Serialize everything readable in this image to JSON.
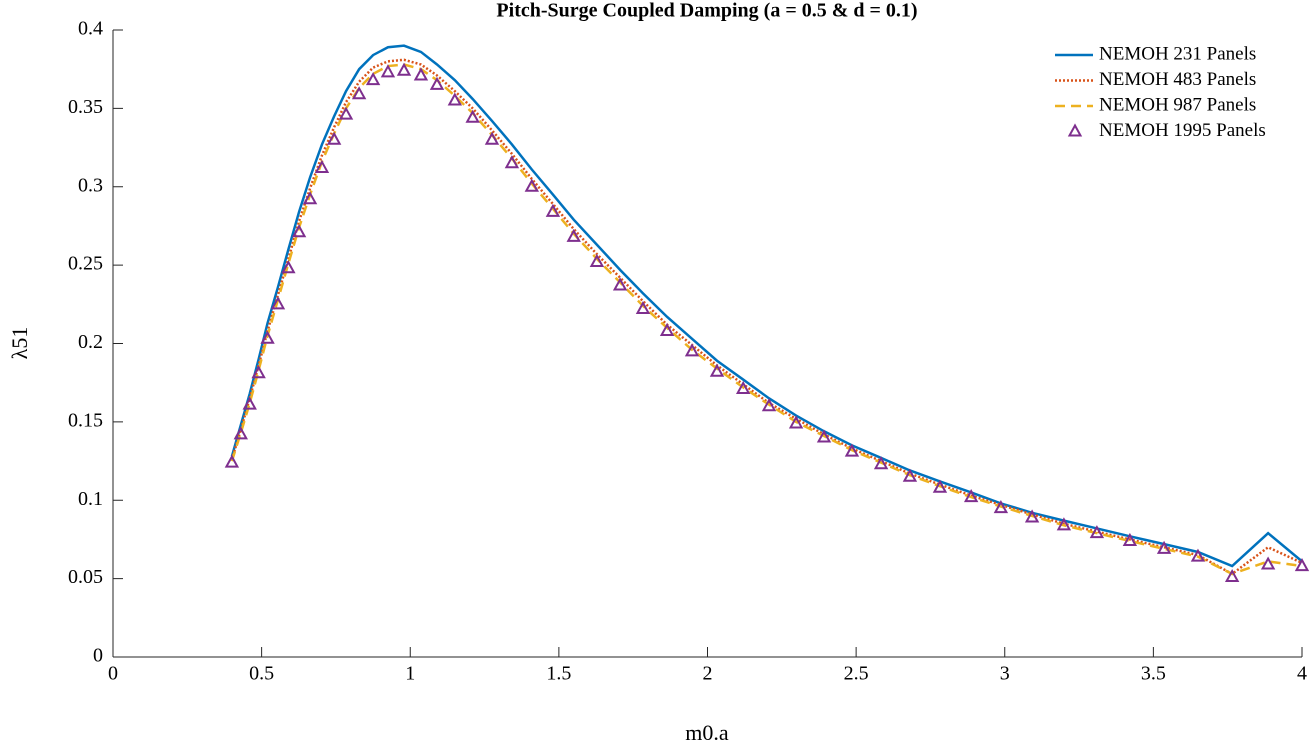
{
  "chart_data": {
    "type": "line",
    "title": "Pitch-Surge Coupled Damping (a = 0.5 & d = 0.1)",
    "xlabel": "m0.a",
    "ylabel": "λ51",
    "x": [
      0.4,
      0.43,
      0.46,
      0.49,
      0.52,
      0.555,
      0.59,
      0.626,
      0.663,
      0.703,
      0.744,
      0.784,
      0.828,
      0.875,
      0.925,
      0.979,
      1.036,
      1.09,
      1.15,
      1.21,
      1.275,
      1.342,
      1.409,
      1.48,
      1.55,
      1.628,
      1.706,
      1.783,
      1.864,
      1.948,
      2.032,
      2.12,
      2.207,
      2.298,
      2.392,
      2.486,
      2.584,
      2.681,
      2.782,
      2.887,
      2.987,
      3.092,
      3.199,
      3.31,
      3.421,
      3.536,
      3.65,
      3.765,
      3.886,
      4.0
    ],
    "series": [
      {
        "name": "NEMOH 231 Panels",
        "color": "#0072bd",
        "style": "solid",
        "values": [
          0.128,
          0.148,
          0.168,
          0.19,
          0.213,
          0.236,
          0.26,
          0.284,
          0.306,
          0.327,
          0.345,
          0.361,
          0.375,
          0.384,
          0.389,
          0.39,
          0.386,
          0.378,
          0.368,
          0.356,
          0.342,
          0.327,
          0.311,
          0.295,
          0.279,
          0.263,
          0.247,
          0.232,
          0.217,
          0.203,
          0.189,
          0.177,
          0.165,
          0.154,
          0.144,
          0.135,
          0.127,
          0.119,
          0.112,
          0.105,
          0.098,
          0.092,
          0.087,
          0.082,
          0.077,
          0.072,
          0.067,
          0.058,
          0.079,
          0.061
        ]
      },
      {
        "name": "NEMOH 483 Panels",
        "color": "#d95319",
        "style": "dotted",
        "values": [
          0.126,
          0.145,
          0.165,
          0.186,
          0.208,
          0.231,
          0.254,
          0.278,
          0.299,
          0.32,
          0.338,
          0.354,
          0.367,
          0.376,
          0.38,
          0.381,
          0.378,
          0.371,
          0.361,
          0.35,
          0.336,
          0.321,
          0.305,
          0.289,
          0.273,
          0.257,
          0.242,
          0.227,
          0.212,
          0.199,
          0.186,
          0.174,
          0.162,
          0.152,
          0.142,
          0.133,
          0.125,
          0.117,
          0.11,
          0.103,
          0.097,
          0.091,
          0.085,
          0.08,
          0.075,
          0.07,
          0.065,
          0.053,
          0.07,
          0.06
        ]
      },
      {
        "name": "NEMOH 987 Panels",
        "color": "#edb120",
        "style": "dashed",
        "values": [
          0.125,
          0.143,
          0.162,
          0.183,
          0.205,
          0.228,
          0.251,
          0.274,
          0.295,
          0.316,
          0.334,
          0.35,
          0.363,
          0.372,
          0.377,
          0.378,
          0.375,
          0.368,
          0.358,
          0.347,
          0.333,
          0.318,
          0.302,
          0.286,
          0.27,
          0.254,
          0.239,
          0.224,
          0.21,
          0.196,
          0.184,
          0.172,
          0.161,
          0.15,
          0.141,
          0.132,
          0.124,
          0.116,
          0.109,
          0.102,
          0.096,
          0.09,
          0.084,
          0.079,
          0.074,
          0.069,
          0.064,
          0.053,
          0.061,
          0.058
        ]
      },
      {
        "name": "NEMOH 1995 Panels",
        "color": "#7e2f8e",
        "style": "triangle",
        "values": [
          0.124,
          0.142,
          0.161,
          0.181,
          0.203,
          0.225,
          0.248,
          0.271,
          0.292,
          0.312,
          0.33,
          0.346,
          0.359,
          0.368,
          0.373,
          0.374,
          0.371,
          0.365,
          0.355,
          0.344,
          0.33,
          0.315,
          0.3,
          0.284,
          0.268,
          0.252,
          0.237,
          0.222,
          0.208,
          0.195,
          0.182,
          0.171,
          0.16,
          0.149,
          0.14,
          0.131,
          0.123,
          0.115,
          0.108,
          0.102,
          0.095,
          0.089,
          0.084,
          0.079,
          0.074,
          0.069,
          0.064,
          0.051,
          0.059,
          0.058
        ]
      }
    ],
    "xlim": [
      0,
      4
    ],
    "xticks": [
      0,
      0.5,
      1,
      1.5,
      2,
      2.5,
      3,
      3.5,
      4
    ],
    "ylim": [
      0,
      0.4
    ],
    "yticks": [
      0,
      0.05,
      0.1,
      0.15,
      0.2,
      0.25,
      0.3,
      0.35,
      0.4
    ],
    "grid": false,
    "legend": "top-right"
  }
}
